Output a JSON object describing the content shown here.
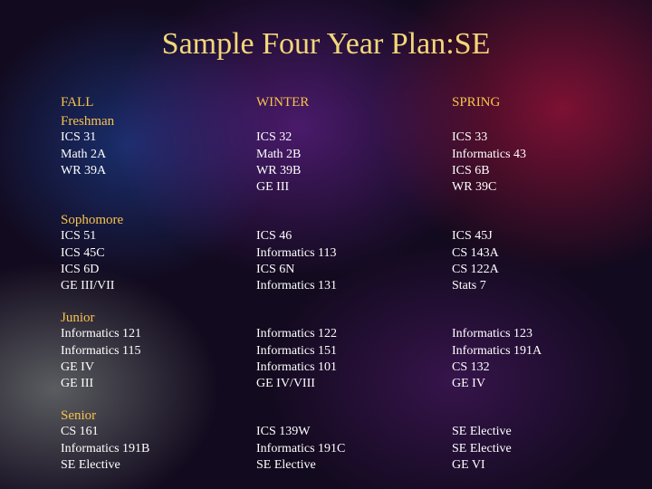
{
  "title": "Sample Four Year Plan:SE",
  "headers": [
    "FALL",
    "WINTER",
    "SPRING"
  ],
  "years": [
    {
      "label": "Freshman",
      "quarters": [
        [
          "ICS 31",
          "Math 2A",
          "WR 39A"
        ],
        [
          "ICS 32",
          "Math 2B",
          "WR 39B",
          "GE III"
        ],
        [
          "ICS 33",
          "Informatics 43",
          "ICS 6B",
          "WR 39C"
        ]
      ]
    },
    {
      "label": "Sophomore",
      "quarters": [
        [
          "ICS 51",
          "ICS 45C",
          "ICS 6D",
          "GE III/VII"
        ],
        [
          "ICS 46",
          "Informatics 113",
          "ICS 6N",
          "Informatics 131"
        ],
        [
          "ICS 45J",
          "CS 143A",
          "CS 122A",
          "Stats 7"
        ]
      ]
    },
    {
      "label": "Junior",
      "quarters": [
        [
          "Informatics 121",
          "Informatics 115",
          "GE IV",
          "GE III"
        ],
        [
          "Informatics 122",
          "Informatics 151",
          "Informatics 101",
          "GE IV/VIII"
        ],
        [
          "Informatics 123",
          "Informatics 191A",
          "CS 132",
          "GE IV"
        ]
      ]
    },
    {
      "label": "Senior",
      "quarters": [
        [
          "CS 161",
          "Informatics 191B",
          "SE Elective"
        ],
        [
          "ICS 139W",
          "Informatics 191C",
          "SE Elective"
        ],
        [
          "SE Elective",
          "SE Elective",
          "GE VI"
        ]
      ]
    }
  ]
}
